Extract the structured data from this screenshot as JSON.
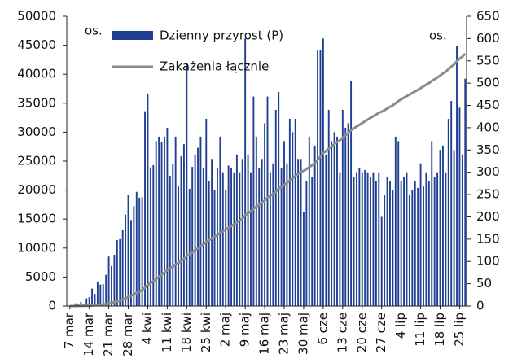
{
  "chart_data": {
    "type": "bar_line",
    "y_label": "os.",
    "y2_label": "os.",
    "categories": [
      "7 mar",
      null,
      null,
      null,
      null,
      null,
      null,
      "14 mar",
      null,
      null,
      null,
      null,
      null,
      null,
      "21 mar",
      null,
      null,
      null,
      null,
      null,
      null,
      "28 mar",
      null,
      null,
      null,
      null,
      null,
      null,
      "4 kwi",
      null,
      null,
      null,
      null,
      null,
      null,
      "11 kwi",
      null,
      null,
      null,
      null,
      null,
      null,
      "18 kwi",
      null,
      null,
      null,
      null,
      null,
      null,
      "25 kwi",
      null,
      null,
      null,
      null,
      null,
      null,
      "2 maj",
      null,
      null,
      null,
      null,
      null,
      null,
      "9 maj",
      null,
      null,
      null,
      null,
      null,
      null,
      "16 maj",
      null,
      null,
      null,
      null,
      null,
      null,
      "23 maj",
      null,
      null,
      null,
      null,
      null,
      null,
      "30 maj",
      null,
      null,
      null,
      null,
      null,
      null,
      "6 cze",
      null,
      null,
      null,
      null,
      null,
      null,
      "13 cze",
      null,
      null,
      null,
      null,
      null,
      null,
      "20 cze",
      null,
      null,
      null,
      null,
      null,
      null,
      "27 cze",
      null,
      null,
      null,
      null,
      null,
      null,
      "4 lip",
      null,
      null,
      null,
      null,
      null,
      null,
      "11 lip",
      null,
      null,
      null,
      null,
      null,
      null,
      "18 lip",
      null,
      null,
      null,
      null,
      null,
      null,
      "25 lip",
      null,
      null
    ],
    "series": [
      {
        "name": "Dzienny przyrost (P)",
        "color": "#1f3f93",
        "type": "bar",
        "axis": "y2",
        "values": [
          1,
          0,
          6,
          5,
          9,
          5,
          17,
          20,
          39,
          27,
          55,
          48,
          49,
          70,
          111,
          90,
          115,
          148,
          150,
          170,
          205,
          249,
          193,
          224,
          256,
          243,
          244,
          437,
          475,
          311,
          316,
          370,
          380,
          368,
          380,
          400,
          292,
          318,
          380,
          268,
          336,
          363,
          545,
          263,
          312,
          340,
          355,
          380,
          310,
          420,
          280,
          330,
          260,
          310,
          380,
          300,
          260,
          315,
          310,
          300,
          340,
          300,
          330,
          600,
          340,
          300,
          470,
          380,
          310,
          330,
          410,
          470,
          300,
          320,
          440,
          480,
          310,
          370,
          320,
          420,
          390,
          420,
          330,
          330,
          210,
          280,
          380,
          290,
          360,
          575,
          575,
          600,
          340,
          440,
          370,
          390,
          380,
          300,
          440,
          400,
          410,
          505,
          290,
          300,
          310,
          300,
          305,
          300,
          290,
          300,
          280,
          300,
          200,
          250,
          290,
          280,
          260,
          380,
          370,
          280,
          290,
          300,
          250,
          260,
          280,
          265,
          320,
          270,
          300,
          280,
          370,
          290,
          300,
          350,
          360,
          300,
          420,
          460,
          350,
          584,
          445,
          340,
          510
        ]
      },
      {
        "name": "Zakażenia łącznie",
        "color": "#8c8c8c",
        "type": "line",
        "axis": "y",
        "values": [
          1,
          1,
          7,
          12,
          21,
          26,
          43,
          63,
          102,
          129,
          184,
          232,
          281,
          351,
          462,
          552,
          667,
          815,
          965,
          1135,
          1340,
          1589,
          1782,
          2006,
          2262,
          2505,
          2749,
          3186,
          3661,
          3972,
          4288,
          4658,
          5038,
          5406,
          5786,
          6186,
          6478,
          6796,
          7176,
          7444,
          7780,
          8143,
          8688,
          8951,
          9263,
          9603,
          9958,
          10338,
          10648,
          11068,
          11348,
          11678,
          11938,
          12248,
          12628,
          12928,
          13188,
          13503,
          13813,
          14113,
          14453,
          14753,
          15083,
          15683,
          16023,
          16323,
          16793,
          17173,
          17483,
          17813,
          18223,
          18693,
          18993,
          19313,
          19753,
          20233,
          20543,
          20913,
          21233,
          21653,
          22043,
          22463,
          22793,
          23123,
          23333,
          23613,
          23993,
          24283,
          24643,
          25218,
          25793,
          26393,
          26733,
          27173,
          27543,
          27933,
          28313,
          28613,
          29053,
          29453,
          29863,
          30368,
          30658,
          30958,
          31268,
          31568,
          31873,
          32173,
          32463,
          32763,
          33043,
          33343,
          33543,
          33793,
          34083,
          34363,
          34623,
          35003,
          35373,
          35653,
          35943,
          36243,
          36493,
          36753,
          37033,
          37298,
          37618,
          37888,
          38188,
          38468,
          38838,
          39128,
          39428,
          39778,
          40138,
          40438,
          40858,
          41318,
          41668,
          42252,
          42697,
          43037,
          43547
        ]
      }
    ],
    "ylim": [
      0,
      50000
    ],
    "yticks": [
      0,
      5000,
      10000,
      15000,
      20000,
      25000,
      30000,
      35000,
      40000,
      45000,
      50000
    ],
    "y2lim": [
      0,
      650
    ],
    "y2ticks": [
      0,
      50,
      100,
      150,
      200,
      250,
      300,
      350,
      400,
      450,
      500,
      550,
      600,
      650
    ]
  }
}
